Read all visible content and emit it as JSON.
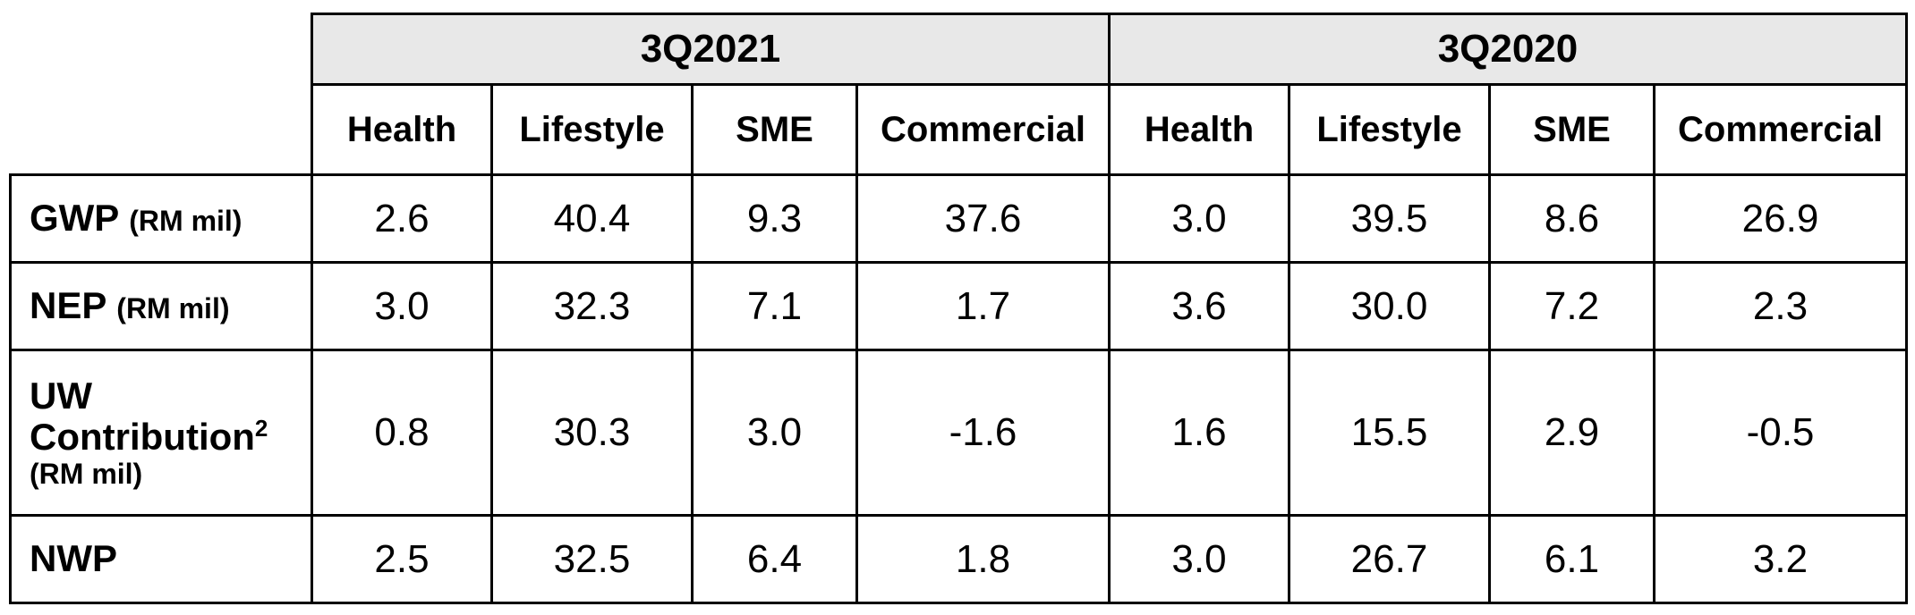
{
  "chart_data": {
    "type": "table",
    "groups": [
      {
        "label": "3Q2021",
        "columns": [
          "Health",
          "Lifestyle",
          "SME",
          "Commercial"
        ]
      },
      {
        "label": "3Q2020",
        "columns": [
          "Health",
          "Lifestyle",
          "SME",
          "Commercial"
        ]
      }
    ],
    "rows": [
      {
        "label": "GWP",
        "unit": "(RM mil)",
        "values": [
          "2.6",
          "40.4",
          "9.3",
          "37.6",
          "3.0",
          "39.5",
          "8.6",
          "26.9"
        ]
      },
      {
        "label": "NEP",
        "unit": "(RM mil)",
        "values": [
          "3.0",
          "32.3",
          "7.1",
          "1.7",
          "3.6",
          "30.0",
          "7.2",
          "2.3"
        ]
      },
      {
        "label_line1": "UW",
        "label_line2": "Contribution",
        "footnote": "2",
        "unit": "(RM mil)",
        "values": [
          "0.8",
          "30.3",
          "3.0",
          "-1.6",
          "1.6",
          "15.5",
          "2.9",
          "-0.5"
        ]
      },
      {
        "label": "NWP",
        "unit": "",
        "values": [
          "2.5",
          "32.5",
          "6.4",
          "1.8",
          "3.0",
          "26.7",
          "6.1",
          "3.2"
        ]
      }
    ],
    "header_fill": "#e8e8e8"
  }
}
